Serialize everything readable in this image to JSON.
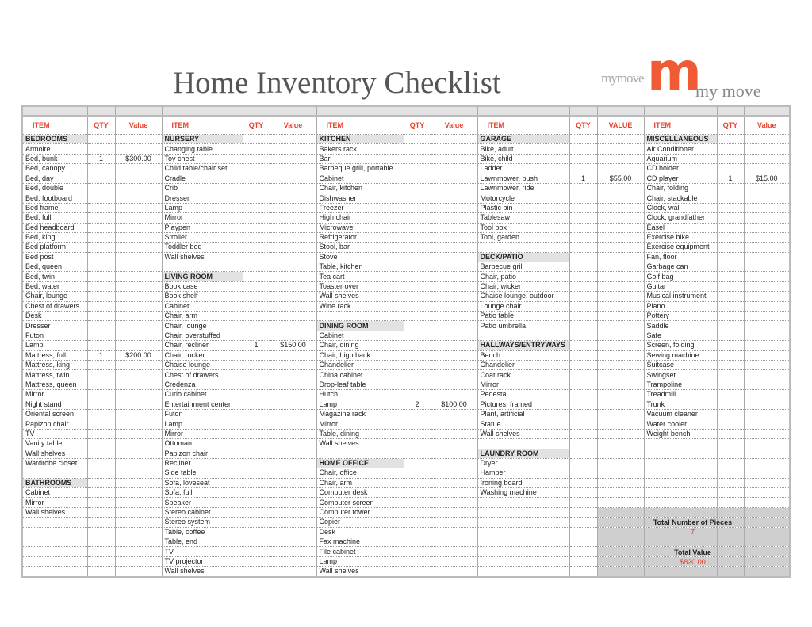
{
  "title": "Home Inventory Checklist",
  "logo": {
    "small": "mymove",
    "mark": "m",
    "text": "my move",
    "color": "#f05a35"
  },
  "headers": [
    [
      "ITEM",
      "QTY",
      "Value"
    ],
    [
      "ITEM",
      "QTY",
      "Value"
    ],
    [
      "ITEM",
      "QTY",
      "Value"
    ],
    [
      "ITEM",
      "QTY",
      "VALUE"
    ],
    [
      "ITEM",
      "QTY",
      "Value"
    ]
  ],
  "groups": [
    {
      "sections": [
        "BEDROOMS",
        "BATHROOMS"
      ],
      "rows": [
        [
          "BEDROOMS"
        ],
        [
          "Armoire"
        ],
        [
          "Bed, bunk",
          "1",
          "$300.00"
        ],
        [
          "Bed, canopy"
        ],
        [
          "Bed, day"
        ],
        [
          "Bed, double"
        ],
        [
          "Bed, footboard"
        ],
        [
          "Bed frame"
        ],
        [
          "Bed, full"
        ],
        [
          "Bed headboard"
        ],
        [
          "Bed, king"
        ],
        [
          "Bed platform"
        ],
        [
          "Bed post"
        ],
        [
          "Bed, queen"
        ],
        [
          "Bed, twin"
        ],
        [
          "Bed, water"
        ],
        [
          "Chair, lounge"
        ],
        [
          "Chest of drawers"
        ],
        [
          "Desk"
        ],
        [
          "Dresser"
        ],
        [
          "Futon"
        ],
        [
          "Lamp"
        ],
        [
          "Mattress, full",
          "1",
          "$200.00"
        ],
        [
          "Mattress, king"
        ],
        [
          "Mattress, twin"
        ],
        [
          "Mattress, queen"
        ],
        [
          "Mirror"
        ],
        [
          "Night stand"
        ],
        [
          "Oriental screen"
        ],
        [
          "Papizon chair"
        ],
        [
          "TV"
        ],
        [
          "Vanity table"
        ],
        [
          "Wall shelves"
        ],
        [
          "Wardrobe closet"
        ],
        [
          ""
        ],
        [
          "BATHROOMS"
        ],
        [
          "Cabinet"
        ],
        [
          "Mirror"
        ],
        [
          "Wall shelves"
        ]
      ]
    },
    {
      "sections": [
        "NURSERY",
        "LIVING ROOM"
      ],
      "rows": [
        [
          "NURSERY"
        ],
        [
          "Changing table"
        ],
        [
          "Toy chest"
        ],
        [
          "Child table/chair set"
        ],
        [
          "Cradle"
        ],
        [
          "Crib"
        ],
        [
          "Dresser"
        ],
        [
          "Lamp"
        ],
        [
          "Mirror"
        ],
        [
          "Playpen"
        ],
        [
          "Stroller"
        ],
        [
          "Toddler bed"
        ],
        [
          "Wall shelves"
        ],
        [
          ""
        ],
        [
          "LIVING ROOM"
        ],
        [
          "Book case"
        ],
        [
          "Book shelf"
        ],
        [
          "Cabinet"
        ],
        [
          "Chair, arm"
        ],
        [
          "Chair, lounge"
        ],
        [
          "Chair, overstuffed"
        ],
        [
          "Chair, recliner",
          "1",
          "$150.00"
        ],
        [
          "Chair, rocker"
        ],
        [
          "Chaise lounge"
        ],
        [
          "Chest of drawers"
        ],
        [
          "Credenza"
        ],
        [
          "Curio cabinet"
        ],
        [
          "Entertainment center"
        ],
        [
          "Futon"
        ],
        [
          "Lamp"
        ],
        [
          "Mirror"
        ],
        [
          "Ottoman"
        ],
        [
          "Papizon chair"
        ],
        [
          "Recliner"
        ],
        [
          "Side table"
        ],
        [
          "Sofa, loveseat"
        ],
        [
          "Sofa, full"
        ],
        [
          "Speaker"
        ],
        [
          "Stereo cabinet"
        ],
        [
          "Stereo system"
        ],
        [
          "Table, coffee"
        ],
        [
          "Table, end"
        ],
        [
          "TV"
        ],
        [
          "TV projector"
        ],
        [
          "Wall shelves"
        ]
      ]
    },
    {
      "sections": [
        "KITCHEN",
        "DINING ROOM",
        "HOME OFFICE"
      ],
      "rows": [
        [
          "KITCHEN"
        ],
        [
          "Bakers rack"
        ],
        [
          "Bar"
        ],
        [
          "Barbeque grill, portable"
        ],
        [
          "Cabinet"
        ],
        [
          "Chair, kitchen"
        ],
        [
          "Dishwasher"
        ],
        [
          "Freezer"
        ],
        [
          "High chair"
        ],
        [
          "Microwave"
        ],
        [
          "Refrigerator"
        ],
        [
          "Stool, bar"
        ],
        [
          "Stove"
        ],
        [
          "Table, kitchen"
        ],
        [
          "Tea cart"
        ],
        [
          "Toaster over"
        ],
        [
          "Wall shelves"
        ],
        [
          "Wine rack"
        ],
        [
          ""
        ],
        [
          "DINING ROOM"
        ],
        [
          "Cabinet"
        ],
        [
          "Chair, dining"
        ],
        [
          "Chair, high back"
        ],
        [
          "Chandelier"
        ],
        [
          "China cabinet"
        ],
        [
          "Drop-leaf table"
        ],
        [
          "Hutch"
        ],
        [
          "Lamp",
          "2",
          "$100.00"
        ],
        [
          "Magazine rack"
        ],
        [
          "Mirror"
        ],
        [
          "Table, dining"
        ],
        [
          "Wall shelves"
        ],
        [
          ""
        ],
        [
          "HOME OFFICE"
        ],
        [
          "Chair, office"
        ],
        [
          "Chair, arm"
        ],
        [
          "Computer desk"
        ],
        [
          "Computer screen"
        ],
        [
          "Computer tower"
        ],
        [
          "Copier"
        ],
        [
          "Desk"
        ],
        [
          "Fax machine"
        ],
        [
          "File cabinet"
        ],
        [
          "Lamp"
        ],
        [
          "Wall shelves"
        ]
      ]
    },
    {
      "sections": [
        "GARAGE",
        "DECK/PATIO",
        "HALLWAYS/ENTRYWAYS",
        "LAUNDRY ROOM"
      ],
      "rows": [
        [
          "GARAGE"
        ],
        [
          "Bike, adult"
        ],
        [
          "Bike, child"
        ],
        [
          "Ladder"
        ],
        [
          "Lawnmower, push",
          "1",
          "$55.00"
        ],
        [
          "Lawnmower, ride"
        ],
        [
          "Motorcycle"
        ],
        [
          "Plastic bin"
        ],
        [
          "Tablesaw"
        ],
        [
          "Tool box"
        ],
        [
          "Tool, garden"
        ],
        [
          ""
        ],
        [
          "DECK/PATIO"
        ],
        [
          "Barbecue grill"
        ],
        [
          "Chair, patio"
        ],
        [
          "Chair, wicker"
        ],
        [
          "Chaise lounge, outdoor"
        ],
        [
          "Lounge chair"
        ],
        [
          "Patio table"
        ],
        [
          "Patio umbrella"
        ],
        [
          ""
        ],
        [
          "HALLWAYS/ENTRYWAYS"
        ],
        [
          "Bench"
        ],
        [
          "Chandelier"
        ],
        [
          "Coat rack"
        ],
        [
          "Mirror"
        ],
        [
          "Pedestal"
        ],
        [
          "Pictures, framed"
        ],
        [
          "Plant, artificial"
        ],
        [
          "Statue"
        ],
        [
          "Wall shelves"
        ],
        [
          ""
        ],
        [
          "LAUNDRY ROOM"
        ],
        [
          "Dryer"
        ],
        [
          "Hamper"
        ],
        [
          "Ironing board"
        ],
        [
          "Washing machine"
        ]
      ]
    },
    {
      "sections": [
        "MISCELLANEOUS"
      ],
      "rows": [
        [
          "MISCELLANEOUS"
        ],
        [
          "Air Conditioner"
        ],
        [
          "Aquarium"
        ],
        [
          "CD holder"
        ],
        [
          "CD player",
          "1",
          "$15.00"
        ],
        [
          "Chair, folding"
        ],
        [
          "Chair, stackable"
        ],
        [
          "Clock, wall"
        ],
        [
          "Clock, grandfather"
        ],
        [
          "Easel"
        ],
        [
          "Exercise bike"
        ],
        [
          "Exercise equipment"
        ],
        [
          "Fan, floor"
        ],
        [
          "Garbage can"
        ],
        [
          "Golf bag"
        ],
        [
          "Guitar"
        ],
        [
          "Musical instrument"
        ],
        [
          "Piano"
        ],
        [
          "Pottery"
        ],
        [
          "Saddle"
        ],
        [
          "Safe"
        ],
        [
          "Screen, folding"
        ],
        [
          "Sewing machine"
        ],
        [
          "Suitcase"
        ],
        [
          "Swingset"
        ],
        [
          "Trampoline"
        ],
        [
          "Treadmill"
        ],
        [
          "Trunk"
        ],
        [
          "Vacuum cleaner"
        ],
        [
          "Water cooler"
        ],
        [
          "Weight bench"
        ]
      ]
    }
  ],
  "totals": {
    "pieces_label": "Total Number of Pieces",
    "pieces": "7",
    "value_label": "Total Value",
    "value": "$820.00",
    "accent": "#e8412c"
  }
}
